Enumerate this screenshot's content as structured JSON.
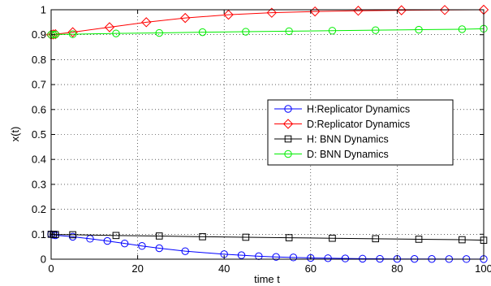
{
  "chart_data": {
    "type": "line",
    "title": "",
    "xlabel": "time t",
    "ylabel": "x(t)",
    "xlim": [
      0,
      100
    ],
    "ylim": [
      0,
      1
    ],
    "xticks": [
      "0",
      "20",
      "40",
      "60",
      "80",
      "100"
    ],
    "yticks": [
      "0",
      "0.1",
      "0.2",
      "0.3",
      "0.4",
      "0.5",
      "0.6",
      "0.7",
      "0.8",
      "0.9",
      "1"
    ],
    "grid": true,
    "legend_position": "right, middle",
    "series": [
      {
        "name": "H:Replicator Dynamics",
        "color": "#0000ff",
        "marker": "circle",
        "x": [
          0,
          0.5,
          1,
          5,
          9,
          13,
          17,
          21,
          25,
          31,
          40,
          44,
          48,
          52,
          56,
          60,
          64,
          68,
          72,
          76,
          80,
          84,
          88,
          92,
          96,
          100
        ],
        "y": [
          0.1,
          0.098,
          0.096,
          0.09,
          0.082,
          0.073,
          0.063,
          0.053,
          0.044,
          0.032,
          0.02,
          0.016,
          0.012,
          0.009,
          0.007,
          0.005,
          0.004,
          0.003,
          0.002,
          0.0015,
          0.001,
          0.001,
          0.0008,
          0.0006,
          0.0005,
          0.0004
        ]
      },
      {
        "name": "D:Replicator Dynamics",
        "color": "#ff0000",
        "marker": "diamond",
        "x": [
          0,
          0.5,
          1,
          5,
          13.5,
          22,
          31,
          41,
          51,
          61,
          71,
          81,
          91,
          100
        ],
        "y": [
          0.9,
          0.901,
          0.902,
          0.91,
          0.93,
          0.95,
          0.967,
          0.98,
          0.988,
          0.993,
          0.996,
          0.998,
          0.999,
          1.0
        ]
      },
      {
        "name": "H: BNN Dynamics",
        "color": "#000000",
        "marker": "square",
        "x": [
          0,
          0.5,
          1,
          5,
          15,
          25,
          35,
          45,
          55,
          65,
          75,
          85,
          95,
          100
        ],
        "y": [
          0.1,
          0.1,
          0.099,
          0.098,
          0.095,
          0.093,
          0.09,
          0.088,
          0.086,
          0.084,
          0.082,
          0.08,
          0.078,
          0.076
        ]
      },
      {
        "name": "D: BNN Dynamics",
        "color": "#00ee00",
        "marker": "circle",
        "x": [
          0,
          0.5,
          1,
          5,
          15,
          25,
          35,
          45,
          55,
          65,
          75,
          85,
          95,
          100
        ],
        "y": [
          0.9,
          0.9,
          0.901,
          0.902,
          0.905,
          0.907,
          0.91,
          0.912,
          0.914,
          0.916,
          0.918,
          0.92,
          0.922,
          0.924
        ]
      }
    ]
  }
}
